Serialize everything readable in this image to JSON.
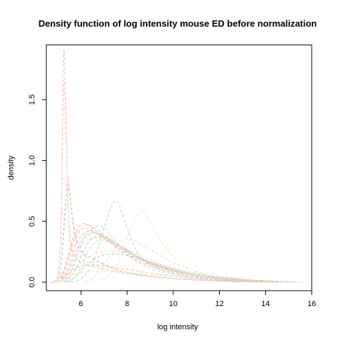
{
  "chart_data": {
    "type": "line",
    "title": "Density function of log intensity mouse ED before normalization",
    "xlabel": "log intensity",
    "ylabel": "density",
    "xlim": [
      4.5,
      16.0
    ],
    "ylim": [
      -0.07,
      1.95
    ],
    "x_ticks": [
      {
        "value": 6,
        "label": "6"
      },
      {
        "value": 8,
        "label": "8"
      },
      {
        "value": 10,
        "label": "10"
      },
      {
        "value": 12,
        "label": "12"
      },
      {
        "value": 14,
        "label": "14"
      },
      {
        "value": 16,
        "label": "16"
      }
    ],
    "y_ticks": [
      {
        "value": 0.0,
        "label": "0.0"
      },
      {
        "value": 0.5,
        "label": "0.5"
      },
      {
        "value": 1.0,
        "label": "1.0"
      },
      {
        "value": 1.5,
        "label": "1.5"
      }
    ],
    "grid": false,
    "line_style": "dashed",
    "series": [
      {
        "color": "#f7b8b8",
        "points": [
          [
            4.7,
            0
          ],
          [
            5.0,
            0.05
          ],
          [
            5.15,
            0.6
          ],
          [
            5.25,
            1.88
          ],
          [
            5.35,
            1.4
          ],
          [
            5.5,
            0.4
          ],
          [
            5.8,
            0.2
          ],
          [
            6.5,
            0.13
          ],
          [
            8,
            0.07
          ],
          [
            10,
            0.03
          ],
          [
            12,
            0.01
          ],
          [
            14,
            0
          ]
        ]
      },
      {
        "color": "#ffd8a0",
        "points": [
          [
            4.7,
            0
          ],
          [
            5.0,
            0.05
          ],
          [
            5.15,
            0.5
          ],
          [
            5.25,
            1.62
          ],
          [
            5.35,
            1.2
          ],
          [
            5.55,
            0.35
          ],
          [
            6,
            0.2
          ],
          [
            7,
            0.12
          ],
          [
            9,
            0.05
          ],
          [
            11,
            0.02
          ],
          [
            13,
            0
          ]
        ]
      },
      {
        "color": "#f7c4c4",
        "points": [
          [
            4.8,
            0
          ],
          [
            5.1,
            0.1
          ],
          [
            5.3,
            0.6
          ],
          [
            5.45,
            0.86
          ],
          [
            5.6,
            0.6
          ],
          [
            5.9,
            0.3
          ],
          [
            6.5,
            0.2
          ],
          [
            8,
            0.08
          ],
          [
            10,
            0.03
          ],
          [
            12,
            0.01
          ],
          [
            14,
            0
          ]
        ]
      },
      {
        "color": "#a8d8cf",
        "points": [
          [
            4.8,
            0
          ],
          [
            5.1,
            0.1
          ],
          [
            5.3,
            0.5
          ],
          [
            5.45,
            0.8
          ],
          [
            5.6,
            0.55
          ],
          [
            5.9,
            0.28
          ],
          [
            6.6,
            0.18
          ],
          [
            8,
            0.08
          ],
          [
            10,
            0.03
          ],
          [
            13,
            0
          ]
        ]
      },
      {
        "color": "#ffe79a",
        "points": [
          [
            6.3,
            0
          ],
          [
            7.0,
            0.03
          ],
          [
            7.6,
            0.15
          ],
          [
            8.1,
            0.42
          ],
          [
            8.65,
            0.58
          ],
          [
            9.2,
            0.42
          ],
          [
            9.8,
            0.25
          ],
          [
            10.6,
            0.12
          ],
          [
            11.6,
            0.05
          ],
          [
            13,
            0.01
          ],
          [
            14.5,
            0
          ]
        ]
      },
      {
        "color": "#a8d8d0",
        "points": [
          [
            5.6,
            0
          ],
          [
            6.0,
            0.03
          ],
          [
            6.5,
            0.15
          ],
          [
            7.0,
            0.45
          ],
          [
            7.5,
            0.67
          ],
          [
            8.0,
            0.45
          ],
          [
            8.5,
            0.22
          ],
          [
            9.2,
            0.12
          ],
          [
            10.5,
            0.05
          ],
          [
            12,
            0.02
          ],
          [
            14,
            0
          ]
        ]
      },
      {
        "color": "#bde0d8",
        "points": [
          [
            5.0,
            0
          ],
          [
            5.4,
            0.08
          ],
          [
            5.9,
            0.3
          ],
          [
            6.4,
            0.43
          ],
          [
            6.9,
            0.46
          ],
          [
            7.4,
            0.36
          ],
          [
            8.2,
            0.2
          ],
          [
            9.2,
            0.1
          ],
          [
            10.5,
            0.05
          ],
          [
            12,
            0.02
          ],
          [
            14,
            0
          ]
        ]
      },
      {
        "color": "#f7a8a8",
        "points": [
          [
            5.0,
            0
          ],
          [
            5.3,
            0.12
          ],
          [
            5.7,
            0.38
          ],
          [
            6.1,
            0.48
          ],
          [
            6.6,
            0.43
          ],
          [
            7.3,
            0.32
          ],
          [
            8.2,
            0.2
          ],
          [
            9.2,
            0.12
          ],
          [
            10.5,
            0.06
          ],
          [
            12,
            0.02
          ],
          [
            14,
            0
          ]
        ]
      },
      {
        "color": "#ffd0a0",
        "points": [
          [
            5.0,
            0
          ],
          [
            5.3,
            0.1
          ],
          [
            5.7,
            0.35
          ],
          [
            6.2,
            0.47
          ],
          [
            6.8,
            0.42
          ],
          [
            7.5,
            0.32
          ],
          [
            8.4,
            0.2
          ],
          [
            9.4,
            0.12
          ],
          [
            10.8,
            0.06
          ],
          [
            12.5,
            0.02
          ],
          [
            14.5,
            0
          ]
        ]
      },
      {
        "color": "#9fd3cf",
        "points": [
          [
            5.2,
            0
          ],
          [
            5.6,
            0.1
          ],
          [
            6.0,
            0.3
          ],
          [
            6.4,
            0.4
          ],
          [
            6.9,
            0.39
          ],
          [
            7.6,
            0.3
          ],
          [
            8.5,
            0.2
          ],
          [
            9.5,
            0.12
          ],
          [
            10.8,
            0.06
          ],
          [
            12.5,
            0.02
          ],
          [
            14.5,
            0
          ]
        ]
      },
      {
        "color": "#8fc8c6",
        "points": [
          [
            5.3,
            0
          ],
          [
            5.7,
            0.08
          ],
          [
            6.1,
            0.25
          ],
          [
            6.5,
            0.36
          ],
          [
            7.0,
            0.37
          ],
          [
            7.7,
            0.3
          ],
          [
            8.6,
            0.2
          ],
          [
            9.6,
            0.12
          ],
          [
            11,
            0.06
          ],
          [
            12.8,
            0.02
          ],
          [
            15,
            0
          ]
        ]
      },
      {
        "color": "#b8dcd6",
        "points": [
          [
            5.5,
            0
          ],
          [
            5.9,
            0.08
          ],
          [
            6.3,
            0.25
          ],
          [
            6.7,
            0.34
          ],
          [
            7.2,
            0.33
          ],
          [
            7.9,
            0.27
          ],
          [
            8.8,
            0.18
          ],
          [
            9.8,
            0.11
          ],
          [
            11.2,
            0.05
          ],
          [
            13,
            0.02
          ],
          [
            15,
            0
          ]
        ]
      },
      {
        "color": "#f2b0b0",
        "points": [
          [
            5.0,
            0
          ],
          [
            5.4,
            0.1
          ],
          [
            5.8,
            0.32
          ],
          [
            6.3,
            0.42
          ],
          [
            6.9,
            0.38
          ],
          [
            7.6,
            0.3
          ],
          [
            8.5,
            0.2
          ],
          [
            9.5,
            0.12
          ],
          [
            11,
            0.06
          ],
          [
            12.8,
            0.02
          ],
          [
            15,
            0
          ]
        ]
      },
      {
        "color": "#ffc9c9",
        "points": [
          [
            5.1,
            0
          ],
          [
            5.5,
            0.1
          ],
          [
            5.9,
            0.3
          ],
          [
            6.3,
            0.4
          ],
          [
            6.8,
            0.38
          ],
          [
            7.5,
            0.3
          ],
          [
            8.4,
            0.21
          ],
          [
            9.5,
            0.13
          ],
          [
            11,
            0.06
          ],
          [
            13,
            0.02
          ],
          [
            15,
            0
          ]
        ]
      },
      {
        "color": "#ffe0b0",
        "points": [
          [
            5.1,
            0
          ],
          [
            5.5,
            0.08
          ],
          [
            5.9,
            0.25
          ],
          [
            6.4,
            0.36
          ],
          [
            7.0,
            0.35
          ],
          [
            7.8,
            0.29
          ],
          [
            8.8,
            0.2
          ],
          [
            9.9,
            0.12
          ],
          [
            11.3,
            0.06
          ],
          [
            13.2,
            0.02
          ],
          [
            15.5,
            0
          ]
        ]
      },
      {
        "color": "#c9e6e0",
        "points": [
          [
            6.2,
            0
          ],
          [
            6.6,
            0.05
          ],
          [
            7.2,
            0.2
          ],
          [
            7.7,
            0.33
          ],
          [
            8.2,
            0.35
          ],
          [
            8.9,
            0.28
          ],
          [
            9.8,
            0.18
          ],
          [
            10.8,
            0.1
          ],
          [
            12,
            0.05
          ],
          [
            13.8,
            0.01
          ],
          [
            15.6,
            0
          ]
        ]
      },
      {
        "color": "#f7c0b0",
        "points": [
          [
            4.9,
            0
          ],
          [
            5.3,
            0.1
          ],
          [
            5.7,
            0.33
          ],
          [
            6.1,
            0.44
          ],
          [
            6.6,
            0.41
          ],
          [
            7.3,
            0.32
          ],
          [
            8.2,
            0.22
          ],
          [
            9.3,
            0.13
          ],
          [
            10.8,
            0.06
          ],
          [
            12.5,
            0.02
          ],
          [
            14.5,
            0
          ]
        ]
      },
      {
        "color": "#ffdba8",
        "points": [
          [
            5.2,
            0
          ],
          [
            5.6,
            0.06
          ],
          [
            6.0,
            0.16
          ],
          [
            6.6,
            0.24
          ],
          [
            7.3,
            0.26
          ],
          [
            8.1,
            0.23
          ],
          [
            9.0,
            0.17
          ],
          [
            10.0,
            0.11
          ],
          [
            11.3,
            0.05
          ],
          [
            13,
            0.02
          ],
          [
            15,
            0
          ]
        ]
      },
      {
        "color": "#a0d0c8",
        "points": [
          [
            5.4,
            0
          ],
          [
            5.8,
            0.05
          ],
          [
            6.3,
            0.15
          ],
          [
            6.9,
            0.22
          ],
          [
            7.6,
            0.23
          ],
          [
            8.4,
            0.2
          ],
          [
            9.3,
            0.15
          ],
          [
            10.3,
            0.1
          ],
          [
            11.6,
            0.05
          ],
          [
            13.3,
            0.02
          ],
          [
            15.3,
            0
          ]
        ]
      },
      {
        "color": "#f5b5b5",
        "points": [
          [
            5.0,
            0
          ],
          [
            5.4,
            0.06
          ],
          [
            5.9,
            0.12
          ],
          [
            6.6,
            0.14
          ],
          [
            7.5,
            0.12
          ],
          [
            8.5,
            0.09
          ],
          [
            9.6,
            0.06
          ],
          [
            11,
            0.03
          ],
          [
            12.6,
            0.01
          ],
          [
            14.5,
            0
          ]
        ]
      },
      {
        "color": "#ffe3b8",
        "points": [
          [
            5.0,
            0
          ],
          [
            5.4,
            0.04
          ],
          [
            6.0,
            0.08
          ],
          [
            7.0,
            0.09
          ],
          [
            8.0,
            0.08
          ],
          [
            9.2,
            0.06
          ],
          [
            10.6,
            0.04
          ],
          [
            12.2,
            0.02
          ],
          [
            14,
            0
          ]
        ]
      }
    ]
  }
}
